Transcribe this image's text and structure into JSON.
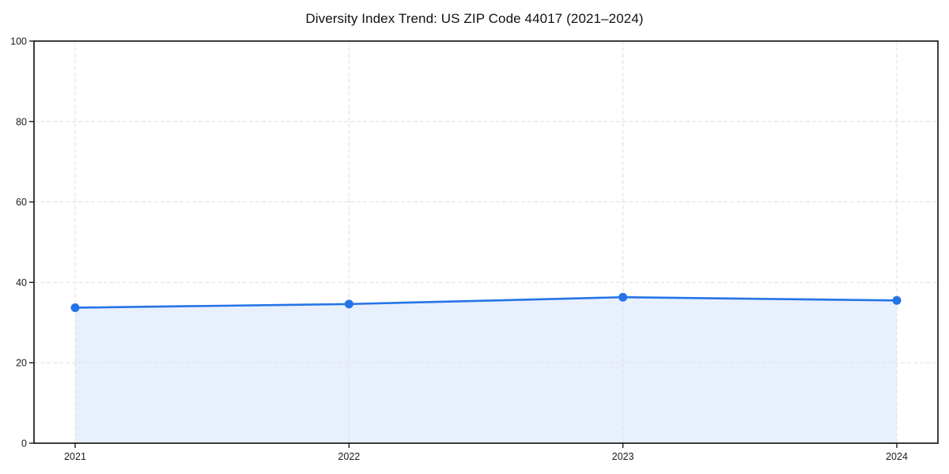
{
  "chart_data": {
    "type": "area",
    "title": "Diversity Index Trend: US ZIP Code 44017 (2021–2024)",
    "categories": [
      "2021",
      "2022",
      "2023",
      "2024"
    ],
    "series": [
      {
        "name": "Diversity Index",
        "values": [
          33.7,
          34.6,
          36.3,
          35.5
        ]
      }
    ],
    "xlabel": "",
    "ylabel": "",
    "ylim": [
      0,
      100
    ],
    "yticks": [
      0,
      20,
      40,
      60,
      80,
      100
    ],
    "grid": "both-dashed",
    "legend_position": "none",
    "colors": {
      "line": "#2474e8",
      "marker": "#2474e8",
      "fill": "#e8f0fd",
      "grid": "#e2e2e2",
      "spine": "#1a1a1a",
      "text": "#1a1a1a",
      "background": "#ffffff"
    }
  }
}
